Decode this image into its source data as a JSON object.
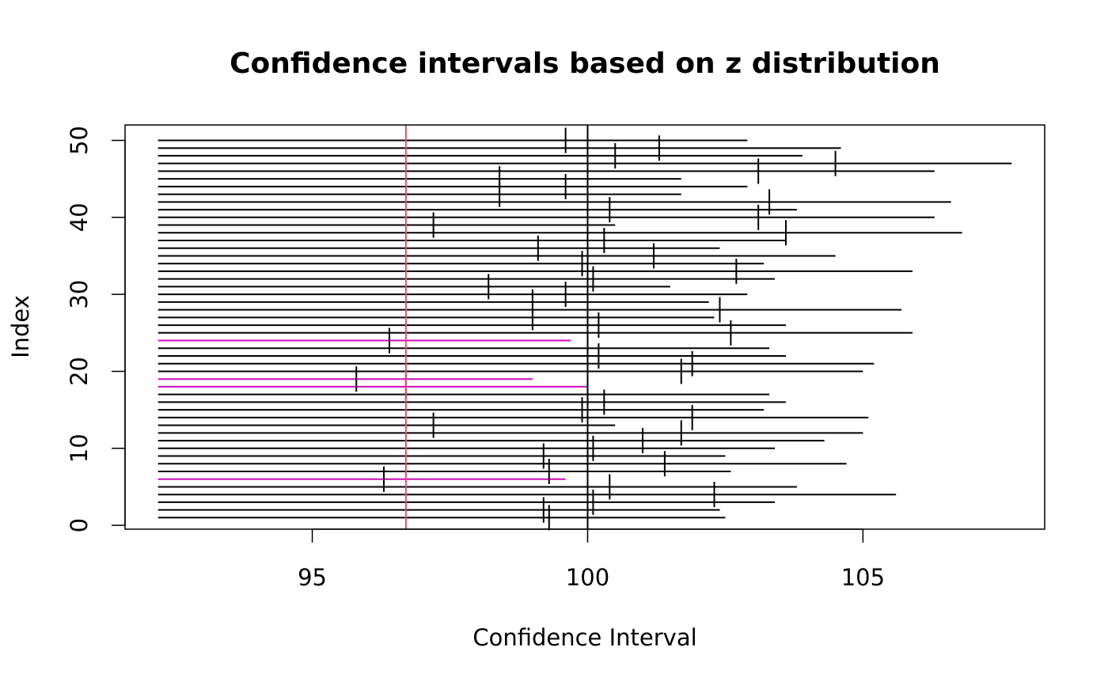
{
  "chart_data": {
    "type": "interval",
    "title": "Confidence intervals based on z distribution",
    "xlabel": "Confidence Interval",
    "ylabel": "Index",
    "xlim": [
      91.6,
      108.3
    ],
    "ylim": [
      -0.5,
      52
    ],
    "x_ticks": [
      95,
      100,
      105
    ],
    "y_ticks": [
      0,
      10,
      20,
      30,
      40,
      50
    ],
    "reference_lines": [
      {
        "name": "true-mean",
        "x": 100,
        "color": "#000000"
      },
      {
        "name": "sample-mean",
        "x": 96.7,
        "color": "#DF536B"
      }
    ],
    "interval_left": 92.2,
    "colors": {
      "covering": "#000000",
      "missing": "#CD0BBC",
      "frame": "#000000"
    },
    "intervals": [
      {
        "index": 1,
        "lower": 92.2,
        "upper": 102.5,
        "center": 99.3,
        "covers": true
      },
      {
        "index": 2,
        "lower": 92.2,
        "upper": 102.4,
        "center": 99.2,
        "covers": true
      },
      {
        "index": 3,
        "lower": 92.2,
        "upper": 103.4,
        "center": 100.1,
        "covers": true
      },
      {
        "index": 4,
        "lower": 92.2,
        "upper": 105.6,
        "center": 102.3,
        "covers": true
      },
      {
        "index": 5,
        "lower": 92.2,
        "upper": 103.8,
        "center": 100.4,
        "covers": true
      },
      {
        "index": 6,
        "lower": 92.2,
        "upper": 99.6,
        "center": 96.3,
        "covers": false
      },
      {
        "index": 7,
        "lower": 92.2,
        "upper": 102.6,
        "center": 99.3,
        "covers": true
      },
      {
        "index": 8,
        "lower": 92.2,
        "upper": 104.7,
        "center": 101.4,
        "covers": true
      },
      {
        "index": 9,
        "lower": 92.2,
        "upper": 102.5,
        "center": 99.2,
        "covers": true
      },
      {
        "index": 10,
        "lower": 92.2,
        "upper": 103.4,
        "center": 100.1,
        "covers": true
      },
      {
        "index": 11,
        "lower": 92.2,
        "upper": 104.3,
        "center": 101.0,
        "covers": true
      },
      {
        "index": 12,
        "lower": 92.2,
        "upper": 105.0,
        "center": 101.7,
        "covers": true
      },
      {
        "index": 13,
        "lower": 92.2,
        "upper": 100.5,
        "center": 97.2,
        "covers": true
      },
      {
        "index": 14,
        "lower": 92.2,
        "upper": 105.1,
        "center": 101.9,
        "covers": true
      },
      {
        "index": 15,
        "lower": 92.2,
        "upper": 103.2,
        "center": 99.9,
        "covers": true
      },
      {
        "index": 16,
        "lower": 92.2,
        "upper": 103.6,
        "center": 100.3,
        "covers": true
      },
      {
        "index": 17,
        "lower": 92.2,
        "upper": 103.3,
        "center": 100.0,
        "covers": true
      },
      {
        "index": 18,
        "lower": 92.2,
        "upper": 100.0,
        "center": 96.7,
        "covers": false
      },
      {
        "index": 19,
        "lower": 92.2,
        "upper": 99.0,
        "center": 95.8,
        "covers": false
      },
      {
        "index": 20,
        "lower": 92.2,
        "upper": 105.0,
        "center": 101.7,
        "covers": true
      },
      {
        "index": 21,
        "lower": 92.2,
        "upper": 105.2,
        "center": 101.9,
        "covers": true
      },
      {
        "index": 22,
        "lower": 92.2,
        "upper": 103.6,
        "center": 100.2,
        "covers": true
      },
      {
        "index": 23,
        "lower": 92.2,
        "upper": 103.3,
        "center": 100.0,
        "covers": true
      },
      {
        "index": 24,
        "lower": 92.2,
        "upper": 99.7,
        "center": 96.4,
        "covers": false
      },
      {
        "index": 25,
        "lower": 92.2,
        "upper": 105.9,
        "center": 102.6,
        "covers": true
      },
      {
        "index": 26,
        "lower": 92.2,
        "upper": 103.6,
        "center": 100.2,
        "covers": true
      },
      {
        "index": 27,
        "lower": 92.2,
        "upper": 102.3,
        "center": 99.0,
        "covers": true
      },
      {
        "index": 28,
        "lower": 92.2,
        "upper": 105.7,
        "center": 102.4,
        "covers": true
      },
      {
        "index": 29,
        "lower": 92.2,
        "upper": 102.2,
        "center": 99.0,
        "covers": true
      },
      {
        "index": 30,
        "lower": 92.2,
        "upper": 102.9,
        "center": 99.6,
        "covers": true
      },
      {
        "index": 31,
        "lower": 92.2,
        "upper": 101.5,
        "center": 98.2,
        "covers": true
      },
      {
        "index": 32,
        "lower": 92.2,
        "upper": 103.4,
        "center": 100.1,
        "covers": true
      },
      {
        "index": 33,
        "lower": 92.2,
        "upper": 105.9,
        "center": 102.7,
        "covers": true
      },
      {
        "index": 34,
        "lower": 92.2,
        "upper": 103.2,
        "center": 99.9,
        "covers": true
      },
      {
        "index": 35,
        "lower": 92.2,
        "upper": 104.5,
        "center": 101.2,
        "covers": true
      },
      {
        "index": 36,
        "lower": 92.2,
        "upper": 102.4,
        "center": 99.1,
        "covers": true
      },
      {
        "index": 37,
        "lower": 92.2,
        "upper": 103.6,
        "center": 100.3,
        "covers": true
      },
      {
        "index": 38,
        "lower": 92.2,
        "upper": 106.8,
        "center": 103.6,
        "covers": true
      },
      {
        "index": 39,
        "lower": 92.2,
        "upper": 100.5,
        "center": 97.2,
        "covers": true
      },
      {
        "index": 40,
        "lower": 92.2,
        "upper": 106.3,
        "center": 103.1,
        "covers": true
      },
      {
        "index": 41,
        "lower": 92.2,
        "upper": 103.8,
        "center": 100.4,
        "covers": true
      },
      {
        "index": 42,
        "lower": 92.2,
        "upper": 106.6,
        "center": 103.3,
        "covers": true
      },
      {
        "index": 43,
        "lower": 92.2,
        "upper": 101.7,
        "center": 98.4,
        "covers": true
      },
      {
        "index": 44,
        "lower": 92.2,
        "upper": 102.9,
        "center": 99.6,
        "covers": true
      },
      {
        "index": 45,
        "lower": 92.2,
        "upper": 101.7,
        "center": 98.4,
        "covers": true
      },
      {
        "index": 46,
        "lower": 92.2,
        "upper": 106.3,
        "center": 103.1,
        "covers": true
      },
      {
        "index": 47,
        "lower": 92.2,
        "upper": 107.7,
        "center": 104.5,
        "covers": true
      },
      {
        "index": 48,
        "lower": 92.2,
        "upper": 103.9,
        "center": 100.5,
        "covers": true
      },
      {
        "index": 49,
        "lower": 92.2,
        "upper": 104.6,
        "center": 101.3,
        "covers": true
      },
      {
        "index": 50,
        "lower": 92.2,
        "upper": 102.9,
        "center": 99.6,
        "covers": true
      }
    ]
  }
}
